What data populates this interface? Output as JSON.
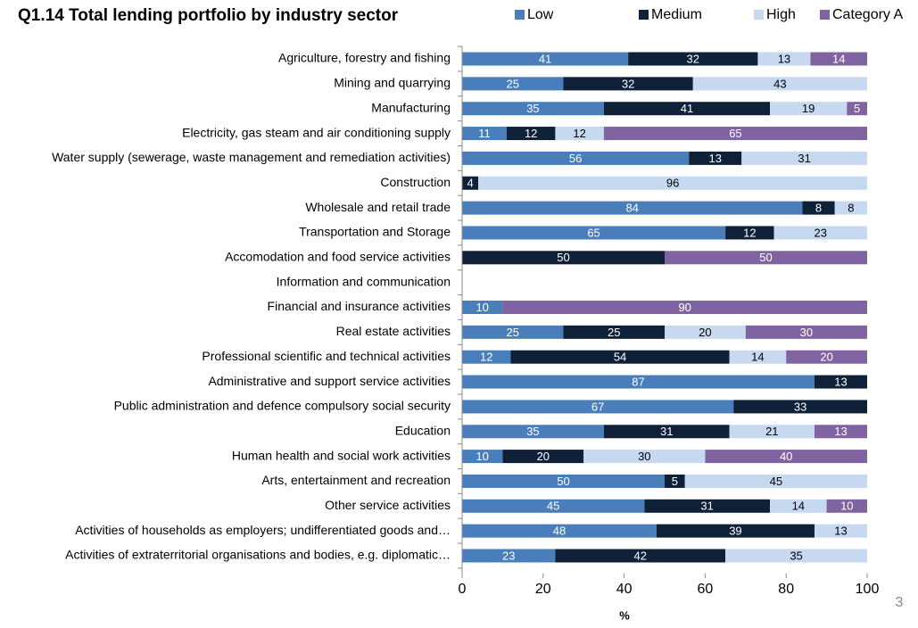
{
  "chart_data": {
    "type": "stacked_barh",
    "title": "Q1.14 Total lending portfolio by industry sector",
    "xlabel": "%",
    "slide_number": 3,
    "legend": "top",
    "categories": [
      "Agriculture, forestry and fishing",
      "Mining and quarrying",
      "Manufacturing",
      "Electricity, gas steam and air conditioning supply",
      "Water supply (sewerage, waste management and remediation activities)",
      "Construction",
      "Wholesale and retail trade",
      "Transportation and Storage",
      "Accomodation and food service activities",
      "Information and communication",
      "Financial and insurance activities",
      "Real estate activities",
      "Professional scientific and technical activities",
      "Administrative and support service activities",
      "Public administration and defence compulsory social security",
      "Education",
      "Human health and social work activities",
      "Arts, entertainment and recreation",
      "Other service activities",
      "Activities of households as employers; undifferentiated goods and…",
      "Activities of extraterritorial organisations and bodies, e.g. diplomatic…"
    ],
    "series": [
      {
        "name": "Low",
        "color": "#4a7ebb",
        "values": [
          41,
          25,
          35,
          11,
          56,
          null,
          84,
          65,
          null,
          null,
          10,
          25,
          12,
          87,
          67,
          35,
          10,
          50,
          45,
          48,
          23
        ]
      },
      {
        "name": "Medium",
        "color": "#0f2039",
        "values": [
          32,
          32,
          41,
          12,
          13,
          4,
          8,
          12,
          50,
          null,
          null,
          25,
          54,
          13,
          33,
          31,
          20,
          5,
          31,
          39,
          42
        ]
      },
      {
        "name": "High",
        "color": "#c6d9f1",
        "values": [
          13,
          43,
          19,
          12,
          31,
          96,
          8,
          23,
          null,
          null,
          null,
          20,
          14,
          null,
          null,
          21,
          30,
          45,
          14,
          13,
          35
        ]
      },
      {
        "name": "Category A",
        "color": "#8064a2",
        "values": [
          14,
          null,
          5,
          65,
          null,
          null,
          null,
          null,
          50,
          null,
          90,
          30,
          20,
          null,
          null,
          13,
          40,
          null,
          10,
          null,
          null
        ]
      }
    ],
    "xlim": [
      0,
      100
    ],
    "xticks": [
      0,
      20,
      40,
      60,
      80,
      100
    ]
  }
}
